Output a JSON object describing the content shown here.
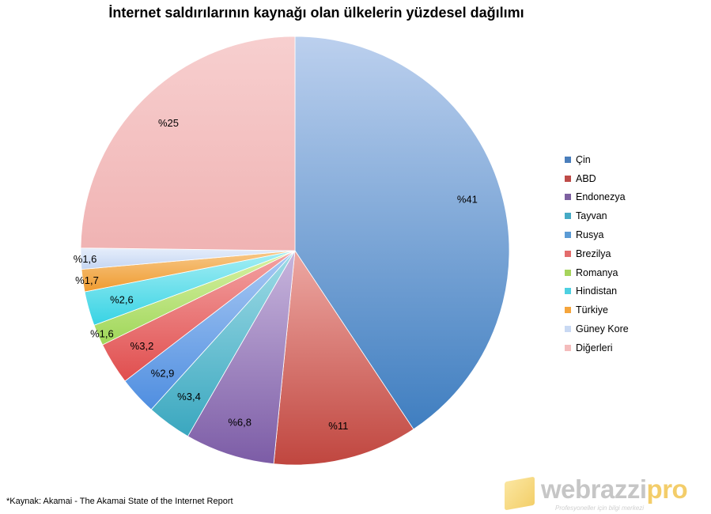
{
  "title": "İnternet saldırılarının kaynağı olan ülkelerin yüzdesel dağılımı",
  "source_note": "*Kaynak: Akamai  - The Akamai State of the Internet Report",
  "logo": {
    "brand_main": "webrazzi",
    "brand_accent": "pro",
    "tagline": "Profesyoneller için bilgi merkezi"
  },
  "chart_data": {
    "type": "pie",
    "title": "İnternet saldırılarının kaynağı olan ülkelerin yüzdesel dağılımı",
    "legend_position": "right",
    "slices": [
      {
        "name": "Çin",
        "value": 41,
        "label": "%41",
        "color_light": "#bcd0ee",
        "color_dark": "#3f7ec0",
        "legend_color": "#4a7ebb"
      },
      {
        "name": "ABD",
        "value": 11,
        "label": "%11",
        "color_light": "#eda8a3",
        "color_dark": "#c0463f",
        "legend_color": "#be4b48"
      },
      {
        "name": "Endonezya",
        "value": 6.8,
        "label": "%6,8",
        "color_light": "#c8b6dd",
        "color_dark": "#7c5ca6",
        "legend_color": "#7d60a0"
      },
      {
        "name": "Tayvan",
        "value": 3.4,
        "label": "%3,4",
        "color_light": "#9fdbe6",
        "color_dark": "#3aa7bf",
        "legend_color": "#46aac5"
      },
      {
        "name": "Rusya",
        "value": 2.9,
        "label": "%2,9",
        "color_light": "#a9c9f3",
        "color_dark": "#4f8ee0",
        "legend_color": "#5b9bd5"
      },
      {
        "name": "Brezilya",
        "value": 3.2,
        "label": "%3,2",
        "color_light": "#f3a3a3",
        "color_dark": "#e04e4e",
        "legend_color": "#e36c6c"
      },
      {
        "name": "Romanya",
        "value": 1.6,
        "label": "%1,6",
        "color_light": "#d9f2a6",
        "color_dark": "#9fd659",
        "legend_color": "#a6d45c"
      },
      {
        "name": "Hindistan",
        "value": 2.6,
        "label": "%2,6",
        "color_light": "#a6eef4",
        "color_dark": "#37d3e4",
        "legend_color": "#4dd0e1"
      },
      {
        "name": "Türkiye",
        "value": 1.7,
        "label": "%1,7",
        "color_light": "#f7c889",
        "color_dark": "#ef9b2f",
        "legend_color": "#f5a53c"
      },
      {
        "name": "Güney Kore",
        "value": 1.6,
        "label": "%1,6",
        "color_light": "#e6eefb",
        "color_dark": "#c4d5f2",
        "legend_color": "#c9d9f3"
      },
      {
        "name": "Diğerleri",
        "value": 25,
        "label": "%25",
        "color_light": "#f7cfcf",
        "color_dark": "#f0b3b3",
        "legend_color": "#f4bcbc"
      }
    ]
  }
}
